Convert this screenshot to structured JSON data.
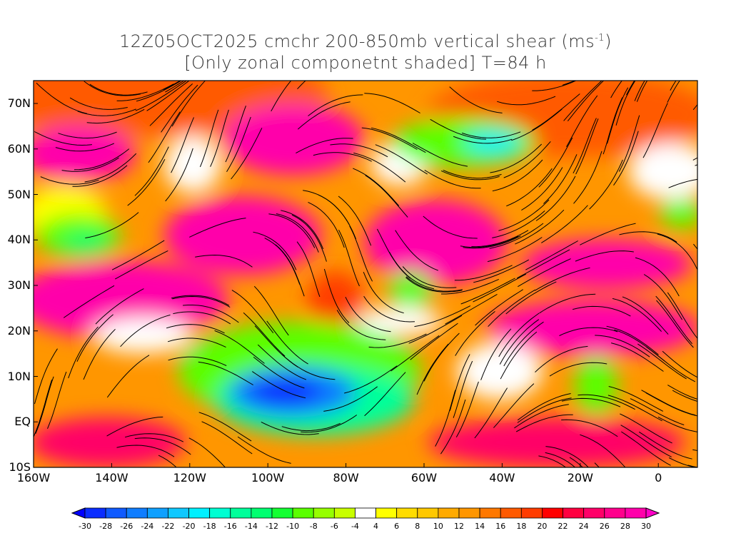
{
  "title": {
    "line1_main": "12Z05OCT2025 cmchr 200-850mb vertical shear (ms",
    "line1_sup": "-1",
    "line1_end": ")",
    "line2": "[Only zonal componetnt shaded] T=84 h"
  },
  "axes": {
    "lat_labels": [
      "70N",
      "60N",
      "50N",
      "40N",
      "30N",
      "20N",
      "10N",
      "EQ",
      "10S"
    ],
    "lon_labels": [
      "160W",
      "140W",
      "120W",
      "100W",
      "80W",
      "60W",
      "40W",
      "20W",
      "0"
    ]
  },
  "colorbar": {
    "labels": [
      "-30",
      "-28",
      "-26",
      "-24",
      "-22",
      "-20",
      "-18",
      "-16",
      "-14",
      "-12",
      "-10",
      "-8",
      "-6",
      "-4",
      "4",
      "6",
      "8",
      "10",
      "12",
      "14",
      "16",
      "18",
      "20",
      "22",
      "24",
      "26",
      "28",
      "30"
    ],
    "colors": [
      "#0000ff",
      "#0a2dff",
      "#0f5aff",
      "#0f7dff",
      "#0fa0ff",
      "#0fc8ff",
      "#00f0ff",
      "#00ffd2",
      "#00ff9a",
      "#00ff70",
      "#14ff32",
      "#5aff00",
      "#96ff00",
      "#c8ff00",
      "#ffffff",
      "#ffff00",
      "#ffdc00",
      "#ffc800",
      "#ffaa00",
      "#ff9600",
      "#ff7800",
      "#ff5a00",
      "#ff3c00",
      "#ff0000",
      "#ff0040",
      "#ff0068",
      "#ff008c",
      "#ff00aa",
      "#ff00c8"
    ]
  }
}
